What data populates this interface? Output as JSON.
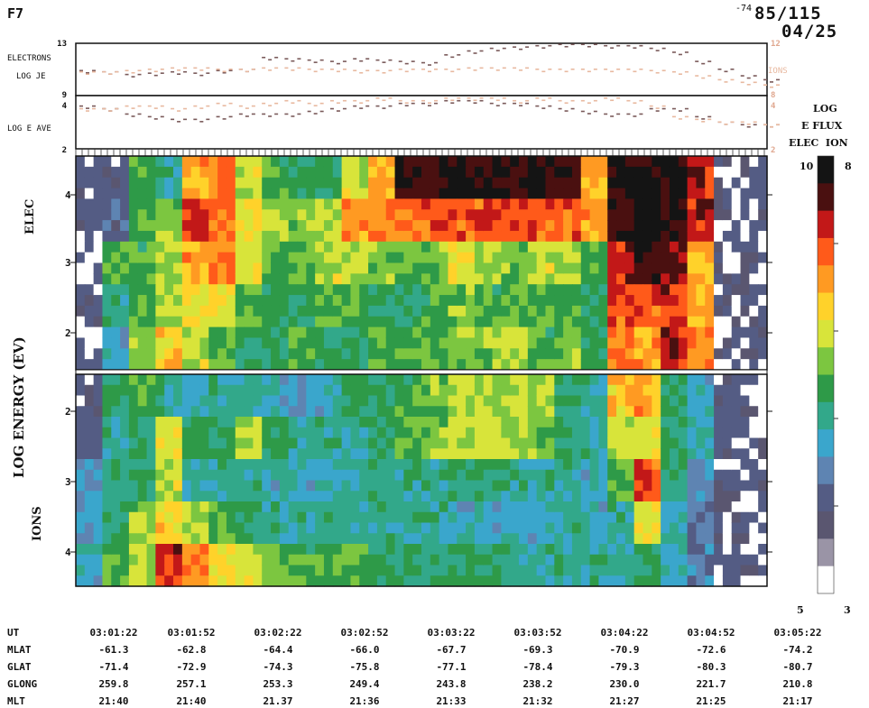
{
  "header": {
    "satellite": "F7",
    "small_mark": "-74",
    "date_code": "85/115",
    "time_code": "04/25"
  },
  "chart_data": [
    {
      "type": "line",
      "panel": "energy-flux",
      "ylabels": [
        "ELECTRONS",
        "LOG JE"
      ],
      "ylim": [
        9,
        13
      ],
      "right_ylim": [
        8,
        12
      ],
      "right_label": "IONS",
      "series": [
        {
          "color": "#7a5a5a",
          "values": [
            10.9,
            10.8,
            10.6,
            10.7,
            10.8,
            10.7,
            10.9,
            11.0,
            11.9,
            11.8,
            11.7,
            11.6,
            11.8,
            11.7,
            11.6,
            11.5,
            12.1,
            12.4,
            12.6,
            12.7,
            12.8,
            12.9,
            12.9,
            12.8,
            12.8,
            12.6,
            12.3,
            11.6,
            11.0,
            10.5,
            10.2
          ]
        },
        {
          "color": "#e8b9a0",
          "values": [
            10.8,
            10.8,
            10.9,
            11.0,
            11.1,
            11.1,
            11.0,
            11.0,
            11.1,
            11.1,
            11.0,
            11.0,
            10.9,
            10.9,
            11.0,
            11.0,
            11.0,
            11.1,
            11.1,
            11.1,
            11.0,
            11.0,
            11.0,
            11.0,
            11.0,
            10.9,
            10.8,
            10.5,
            10.2,
            10.0,
            9.8
          ]
        }
      ]
    },
    {
      "type": "line",
      "panel": "average-energy",
      "ylabels": [
        "LOG E AVE"
      ],
      "ylim": [
        2,
        4
      ],
      "right_ylim": [
        2,
        4
      ],
      "series": [
        {
          "color": "#7a5a5a",
          "values": [
            3.6,
            3.5,
            3.3,
            3.2,
            3.1,
            3.1,
            3.2,
            3.3,
            3.3,
            3.3,
            3.4,
            3.5,
            3.6,
            3.6,
            3.7,
            3.7,
            3.8,
            3.8,
            3.7,
            3.7,
            3.6,
            3.5,
            3.4,
            3.3,
            3.3,
            3.5,
            3.5,
            3.2,
            3.0,
            2.9,
            2.9
          ]
        },
        {
          "color": "#e8b9a0",
          "values": [
            3.5,
            3.5,
            3.6,
            3.6,
            3.5,
            3.6,
            3.7,
            3.6,
            3.7,
            3.8,
            3.7,
            3.8,
            3.8,
            3.9,
            3.8,
            3.8,
            3.9,
            3.9,
            3.9,
            3.8,
            3.9,
            3.8,
            3.8,
            3.9,
            3.8,
            3.6,
            3.2,
            3.1,
            3.0,
            3.0,
            2.9
          ]
        }
      ]
    },
    {
      "type": "heatmap",
      "panel": "spectrogram",
      "ylabel": "LOG ENERGY (EV)",
      "sub_labels": [
        "ELEC",
        "IONS"
      ],
      "elec_ticks": [
        "4",
        "3",
        "2"
      ],
      "ion_ticks": [
        "2",
        "3",
        "4"
      ],
      "colorbar": {
        "title": [
          "LOG",
          "E FLUX",
          "ELEC  ION"
        ],
        "top_left": "10",
        "top_right": "8",
        "bottom_left": "5",
        "bottom_right": "3",
        "colors": [
          "#141414",
          "#4a1010",
          "#c21818",
          "#ff5a1a",
          "#ff9a22",
          "#ffd22a",
          "#d8e43a",
          "#7cc640",
          "#2e9a48",
          "#32a88a",
          "#3aa6cc",
          "#5e84b2",
          "#545c84",
          "#5a5670",
          "#9a94a6",
          "#ffffff"
        ]
      },
      "electron_rows": [
        [
          0.1,
          0.12,
          0.45,
          0.35,
          0.7,
          0.75,
          0.55,
          0.45,
          0.4,
          0.4,
          0.55,
          0.7,
          0.95,
          0.96,
          0.98,
          0.97,
          0.96,
          0.96,
          0.95,
          0.7,
          0.98,
          1.0,
          0.96,
          0.85,
          0.05,
          0.05
        ],
        [
          0.1,
          0.15,
          0.45,
          0.5,
          0.85,
          0.75,
          0.6,
          0.55,
          0.5,
          0.55,
          0.7,
          0.75,
          0.75,
          0.78,
          0.8,
          0.8,
          0.8,
          0.8,
          0.8,
          0.7,
          0.95,
          1.0,
          0.95,
          0.85,
          0.05,
          0.05
        ],
        [
          0.05,
          0.45,
          0.45,
          0.55,
          0.7,
          0.75,
          0.6,
          0.45,
          0.45,
          0.55,
          0.55,
          0.5,
          0.45,
          0.5,
          0.6,
          0.55,
          0.5,
          0.55,
          0.55,
          0.45,
          0.85,
          0.96,
          0.9,
          0.7,
          0.05,
          0.05
        ],
        [
          0.05,
          0.35,
          0.45,
          0.55,
          0.65,
          0.6,
          0.45,
          0.4,
          0.4,
          0.45,
          0.45,
          0.4,
          0.4,
          0.45,
          0.5,
          0.45,
          0.45,
          0.45,
          0.45,
          0.4,
          0.8,
          0.8,
          0.85,
          0.7,
          0.05,
          0.05
        ],
        [
          0.05,
          0.3,
          0.5,
          0.65,
          0.55,
          0.45,
          0.4,
          0.4,
          0.45,
          0.4,
          0.4,
          0.45,
          0.45,
          0.45,
          0.5,
          0.5,
          0.55,
          0.45,
          0.5,
          0.4,
          0.75,
          0.7,
          0.85,
          0.75,
          0.05,
          0.05
        ]
      ],
      "ion_rows": [
        [
          0.1,
          0.4,
          0.45,
          0.35,
          0.3,
          0.35,
          0.35,
          0.3,
          0.25,
          0.3,
          0.4,
          0.4,
          0.45,
          0.5,
          0.55,
          0.55,
          0.55,
          0.55,
          0.4,
          0.35,
          0.65,
          0.7,
          0.4,
          0.3,
          0.1,
          0.05
        ],
        [
          0.1,
          0.35,
          0.4,
          0.6,
          0.4,
          0.4,
          0.55,
          0.4,
          0.35,
          0.35,
          0.35,
          0.4,
          0.45,
          0.5,
          0.55,
          0.55,
          0.55,
          0.5,
          0.4,
          0.35,
          0.55,
          0.6,
          0.4,
          0.3,
          0.1,
          0.05
        ],
        [
          0.25,
          0.35,
          0.4,
          0.55,
          0.35,
          0.35,
          0.35,
          0.3,
          0.3,
          0.3,
          0.35,
          0.35,
          0.35,
          0.35,
          0.4,
          0.4,
          0.35,
          0.35,
          0.35,
          0.3,
          0.45,
          0.8,
          0.35,
          0.25,
          0.05,
          0.05
        ],
        [
          0.25,
          0.4,
          0.5,
          0.65,
          0.55,
          0.45,
          0.4,
          0.35,
          0.35,
          0.35,
          0.35,
          0.35,
          0.35,
          0.35,
          0.3,
          0.3,
          0.3,
          0.3,
          0.35,
          0.3,
          0.35,
          0.6,
          0.3,
          0.2,
          0.05,
          0.05
        ],
        [
          0.3,
          0.45,
          0.55,
          0.85,
          0.75,
          0.6,
          0.55,
          0.5,
          0.45,
          0.45,
          0.45,
          0.4,
          0.4,
          0.4,
          0.4,
          0.4,
          0.35,
          0.35,
          0.35,
          0.35,
          0.35,
          0.4,
          0.3,
          0.2,
          0.05,
          0.05
        ]
      ]
    }
  ],
  "ephemeris": {
    "rows": [
      {
        "label": "UT",
        "values": [
          "03:01:22",
          "03:01:52",
          "03:02:22",
          "03:02:52",
          "03:03:22",
          "03:03:52",
          "03:04:22",
          "03:04:52",
          "03:05:22"
        ]
      },
      {
        "label": "MLAT",
        "values": [
          "-61.3",
          "-62.8",
          "-64.4",
          "-66.0",
          "-67.7",
          "-69.3",
          "-70.9",
          "-72.6",
          "-74.2"
        ]
      },
      {
        "label": "GLAT",
        "values": [
          "-71.4",
          "-72.9",
          "-74.3",
          "-75.8",
          "-77.1",
          "-78.4",
          "-79.3",
          "-80.3",
          "-80.7"
        ]
      },
      {
        "label": "GLONG",
        "values": [
          "259.8",
          "257.1",
          "253.3",
          "249.4",
          "243.8",
          "238.2",
          "230.0",
          "221.7",
          "210.8"
        ]
      },
      {
        "label": "MLT",
        "values": [
          "21:40",
          "21:40",
          "21.37",
          "21:36",
          "21:33",
          "21:32",
          "21:27",
          "21:25",
          "21:17"
        ]
      }
    ]
  }
}
